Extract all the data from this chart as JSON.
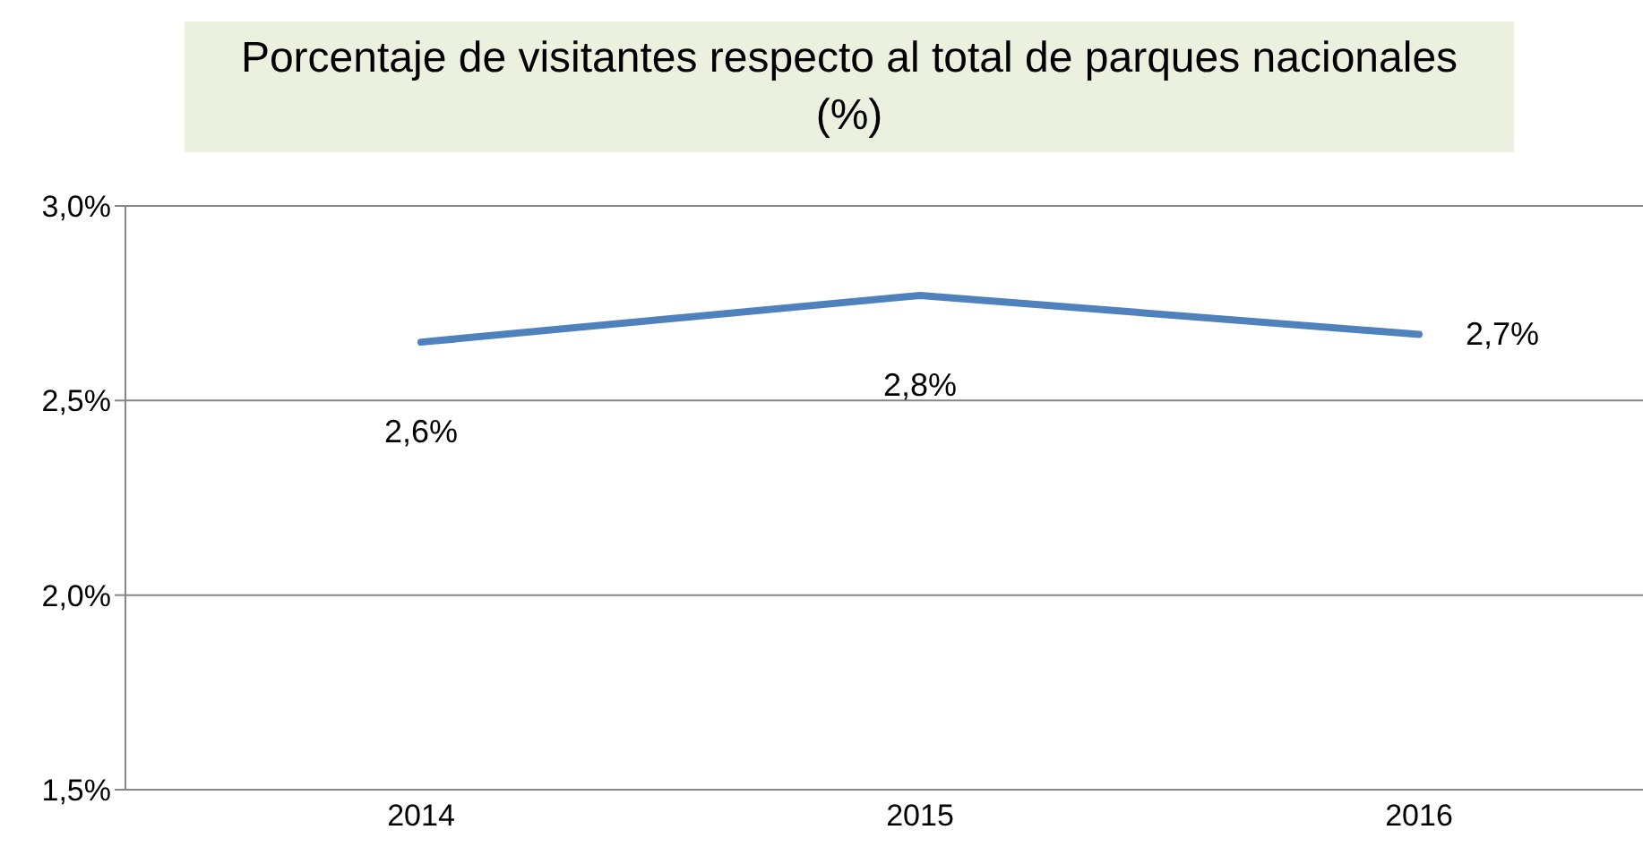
{
  "chart_data": {
    "type": "line",
    "title": "Porcentaje de visitantes respecto al total de parques nacionales (%)",
    "categories": [
      "2014",
      "2015",
      "2016"
    ],
    "series": [
      {
        "color": "#4f81bd",
        "values": [
          2.65,
          2.77,
          2.67
        ],
        "value_labels": [
          "2,6%",
          "2,8%",
          "2,7%"
        ]
      }
    ],
    "ylim": [
      1.5,
      3.0
    ],
    "yticks": [
      {
        "value": 1.5,
        "label": "1,5%"
      },
      {
        "value": 2.0,
        "label": "2,0%"
      },
      {
        "value": 2.5,
        "label": "2,5%"
      },
      {
        "value": 3.0,
        "label": "3,0%"
      }
    ],
    "grid": "y",
    "legend": false,
    "marker": "none",
    "line_style": "solid"
  }
}
